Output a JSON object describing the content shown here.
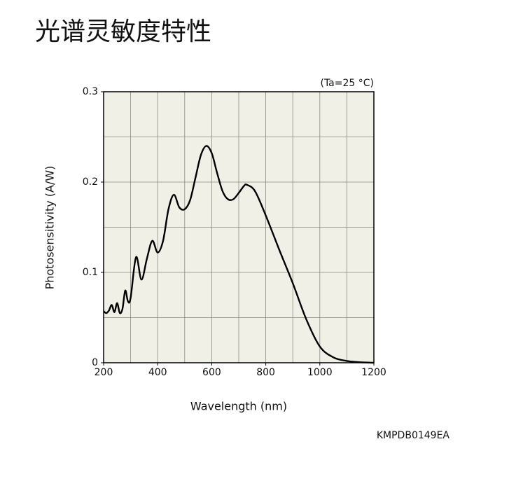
{
  "chart_data": {
    "type": "line",
    "title": "光谱灵敏度特性",
    "annotation": "(Ta=25 °C)",
    "x_label": "Wavelength (nm)",
    "y_label": "Photosensitivity (A/W)",
    "code": "KMPDB0149EA",
    "xlim": [
      200,
      1200
    ],
    "ylim": [
      0,
      0.3
    ],
    "xticks": [
      200,
      400,
      600,
      800,
      1000,
      1200
    ],
    "yticks": [
      0,
      0.1,
      0.2,
      0.3
    ],
    "xgrid": [
      200,
      300,
      400,
      500,
      600,
      700,
      800,
      900,
      1000,
      1100,
      1200
    ],
    "ygrid": [
      0,
      0.05,
      0.1,
      0.15,
      0.2,
      0.25,
      0.3
    ],
    "grid": true,
    "background": "#f1f0e6",
    "series": [
      {
        "color": "#000000",
        "x": [
          200,
          210,
          220,
          230,
          240,
          250,
          260,
          270,
          280,
          290,
          300,
          320,
          340,
          360,
          380,
          400,
          420,
          440,
          460,
          480,
          500,
          520,
          540,
          560,
          580,
          600,
          620,
          640,
          660,
          680,
          700,
          720,
          730,
          760,
          800,
          850,
          900,
          950,
          1000,
          1050,
          1100,
          1150,
          1200
        ],
        "values": [
          0.057,
          0.055,
          0.058,
          0.064,
          0.056,
          0.066,
          0.055,
          0.06,
          0.08,
          0.068,
          0.072,
          0.117,
          0.092,
          0.115,
          0.135,
          0.122,
          0.135,
          0.17,
          0.186,
          0.172,
          0.17,
          0.18,
          0.205,
          0.23,
          0.24,
          0.232,
          0.21,
          0.19,
          0.181,
          0.181,
          0.188,
          0.196,
          0.197,
          0.19,
          0.163,
          0.125,
          0.088,
          0.048,
          0.018,
          0.006,
          0.002,
          0.0005,
          0
        ]
      }
    ]
  }
}
